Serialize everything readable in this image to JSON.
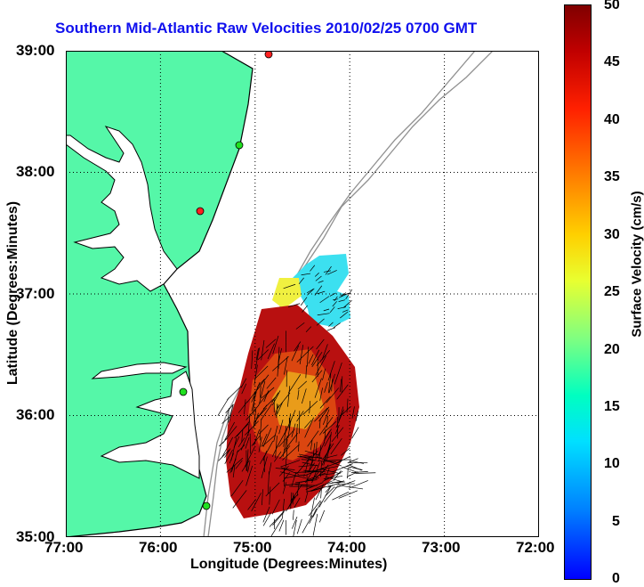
{
  "title": "Southern Mid-Atlantic Raw Velocities 2010/02/25 0700 GMT",
  "x_axis": {
    "label": "Longitude (Degrees:Minutes)",
    "ticks": [
      "77:00",
      "76:00",
      "75:00",
      "74:00",
      "73:00",
      "72:00"
    ]
  },
  "y_axis": {
    "label": "Latitude (Degrees:Minutes)",
    "ticks": [
      "39:00",
      "38:00",
      "37:00",
      "36:00",
      "35:00"
    ]
  },
  "colorbar": {
    "label": "Surface Velocity (cm/s)",
    "ticks": [
      "50",
      "45",
      "40",
      "35",
      "30",
      "25",
      "20",
      "15",
      "10",
      "5",
      "0"
    ],
    "range": [
      0,
      50
    ],
    "colors": [
      "#0000ff",
      "#00e0ff",
      "#80ff80",
      "#e8ff30",
      "#ff8000",
      "#ff2000",
      "#800000"
    ]
  },
  "map": {
    "lon_range": [
      -77,
      -72
    ],
    "lat_range": [
      35,
      39
    ],
    "grid": "dotted",
    "land_color": "#55f7a8",
    "coastline_color": "#000000",
    "bathymetry_color": "#909090",
    "stations": [
      {
        "name": "",
        "color": "#ff2020"
      },
      {
        "name": "",
        "color": "#20e020"
      },
      {
        "name": "",
        "color": "#ff2020"
      },
      {
        "name": "",
        "color": "#20e020"
      },
      {
        "name": "",
        "color": "#20e020"
      }
    ]
  }
}
